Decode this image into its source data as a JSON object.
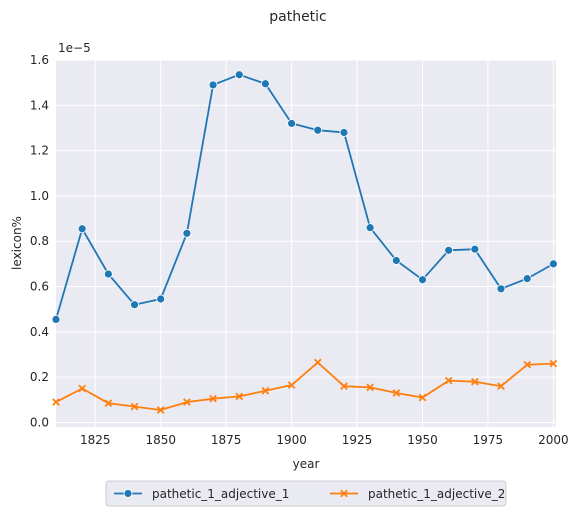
{
  "chart_data": {
    "type": "line",
    "title": "pathetic",
    "xlabel": "year",
    "ylabel": "lexicon%",
    "y_offset_label": "1e−5",
    "xlim": [
      1810,
      2001
    ],
    "ylim": [
      -0.02,
      1.6
    ],
    "x_ticks": [
      1825,
      1850,
      1875,
      1900,
      1925,
      1950,
      1975,
      2000
    ],
    "y_ticks": [
      0.0,
      0.2,
      0.4,
      0.6,
      0.8,
      1.0,
      1.2,
      1.4,
      1.6
    ],
    "y_tick_labels": [
      "0.0",
      "0.2",
      "0.4",
      "0.6",
      "0.8",
      "1.0",
      "1.2",
      "1.4",
      "1.6"
    ],
    "grid": true,
    "legend_placement": "bottom-center",
    "x": [
      1810,
      1820,
      1830,
      1840,
      1850,
      1860,
      1870,
      1880,
      1890,
      1900,
      1910,
      1920,
      1930,
      1940,
      1950,
      1960,
      1970,
      1980,
      1990,
      2000
    ],
    "series": [
      {
        "name": "pathetic_1_adjective_1",
        "color": "#1f77b4",
        "marker": "circle",
        "values": [
          0.455,
          0.855,
          0.655,
          0.52,
          0.545,
          0.835,
          1.49,
          1.535,
          1.495,
          1.32,
          1.29,
          1.28,
          0.86,
          0.715,
          0.63,
          0.76,
          0.765,
          0.59,
          0.635,
          0.7
        ]
      },
      {
        "name": "pathetic_1_adjective_2",
        "color": "#ff7f0e",
        "marker": "x",
        "values": [
          0.09,
          0.15,
          0.085,
          0.07,
          0.055,
          0.09,
          0.105,
          0.115,
          0.14,
          0.165,
          0.265,
          0.16,
          0.155,
          0.13,
          0.11,
          0.185,
          0.18,
          0.16,
          0.255,
          0.26
        ]
      }
    ]
  }
}
